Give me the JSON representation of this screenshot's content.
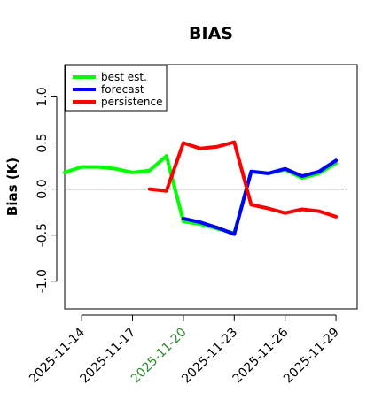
{
  "chart_data": {
    "type": "line",
    "title": "BIAS",
    "ylabel": "Bias (K)",
    "xlabel": "",
    "ylim": [
      -1.3,
      1.35
    ],
    "y_ticks": [
      -1.0,
      -0.5,
      0.0,
      0.5,
      1.0
    ],
    "y_tick_labels": [
      "-1.0",
      "-0.5",
      "0.0",
      "0.5",
      "1.0"
    ],
    "x_ticks": [
      "2025-11-14",
      "2025-11-17",
      "2025-11-20",
      "2025-11-23",
      "2025-11-26",
      "2025-11-29"
    ],
    "highlighted_tick": "2025-11-20",
    "highlight_color": "#2e8b2e",
    "xlim": [
      "2025-11-13 00:00",
      "2025-11-30 06:00"
    ],
    "reference_line_y": 0.0,
    "legend_position": "top-left",
    "series": [
      {
        "name": "best est.",
        "color": "#00ff00",
        "points": [
          [
            "2025-11-13 00:00",
            0.18
          ],
          [
            "2025-11-14 00:00",
            0.24
          ],
          [
            "2025-11-15 00:00",
            0.24
          ],
          [
            "2025-11-16 00:00",
            0.22
          ],
          [
            "2025-11-17 00:00",
            0.18
          ],
          [
            "2025-11-18 00:00",
            0.2
          ],
          [
            "2025-11-19 00:00",
            0.36
          ],
          [
            "2025-11-20 00:00",
            -0.35
          ],
          [
            "2025-11-21 00:00",
            -0.38
          ],
          [
            "2025-11-22 00:00",
            -0.43
          ],
          [
            "2025-11-23 00:00",
            -0.48
          ],
          [
            "2025-11-24 00:00",
            0.19
          ],
          [
            "2025-11-25 00:00",
            0.17
          ],
          [
            "2025-11-26 00:00",
            0.21
          ],
          [
            "2025-11-27 00:00",
            0.12
          ],
          [
            "2025-11-28 00:00",
            0.17
          ],
          [
            "2025-11-29 00:00",
            0.28
          ]
        ]
      },
      {
        "name": "forecast",
        "color": "#0000ff",
        "points": [
          [
            "2025-11-20 00:00",
            -0.32
          ],
          [
            "2025-11-21 00:00",
            -0.36
          ],
          [
            "2025-11-22 00:00",
            -0.42
          ],
          [
            "2025-11-23 00:00",
            -0.49
          ],
          [
            "2025-11-24 00:00",
            0.19
          ],
          [
            "2025-11-25 00:00",
            0.17
          ],
          [
            "2025-11-26 00:00",
            0.22
          ],
          [
            "2025-11-27 00:00",
            0.14
          ],
          [
            "2025-11-28 00:00",
            0.19
          ],
          [
            "2025-11-29 00:00",
            0.31
          ]
        ]
      },
      {
        "name": "persistence",
        "color": "#ff0000",
        "points": [
          [
            "2025-11-18 00:00",
            0.0
          ],
          [
            "2025-11-19 00:00",
            -0.02
          ],
          [
            "2025-11-20 00:00",
            0.5
          ],
          [
            "2025-11-21 00:00",
            0.44
          ],
          [
            "2025-11-22 00:00",
            0.46
          ],
          [
            "2025-11-23 00:00",
            0.51
          ],
          [
            "2025-11-24 00:00",
            -0.17
          ],
          [
            "2025-11-25 00:00",
            -0.21
          ],
          [
            "2025-11-26 00:00",
            -0.26
          ],
          [
            "2025-11-27 00:00",
            -0.22
          ],
          [
            "2025-11-28 00:00",
            -0.24
          ],
          [
            "2025-11-29 00:00",
            -0.3
          ]
        ]
      }
    ]
  }
}
